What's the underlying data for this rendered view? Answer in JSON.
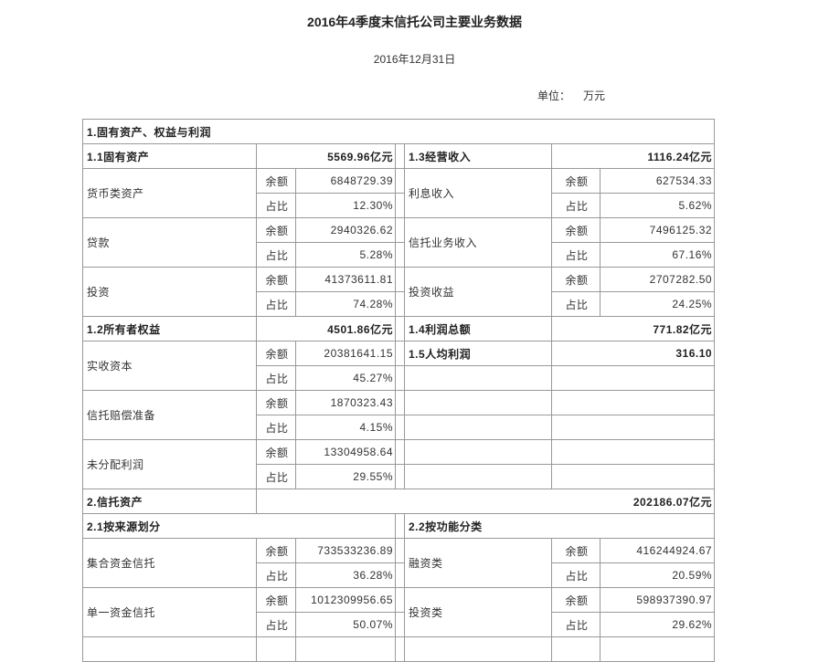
{
  "title": "2016年4季度末信托公司主要业务数据",
  "date": "2016年12月31日",
  "unit_label": "单位：",
  "unit": "万元",
  "labels": {
    "amount": "余额",
    "ratio": "占比"
  },
  "s1": {
    "title": "1.固有资产、权益与利润",
    "fixed_assets": {
      "label": "1.1固有资产",
      "total": "5569.96亿元",
      "items": [
        {
          "name": "货币类资产",
          "amount": "6848729.39",
          "ratio": "12.30%"
        },
        {
          "name": "贷款",
          "amount": "2940326.62",
          "ratio": "5.28%"
        },
        {
          "name": "投资",
          "amount": "41373611.81",
          "ratio": "74.28%"
        }
      ]
    },
    "revenue": {
      "label": "1.3经营收入",
      "total": "1116.24亿元",
      "items": [
        {
          "name": "利息收入",
          "amount": "627534.33",
          "ratio": "5.62%"
        },
        {
          "name": "信托业务收入",
          "amount": "7496125.32",
          "ratio": "67.16%"
        },
        {
          "name": "投资收益",
          "amount": "2707282.50",
          "ratio": "24.25%"
        }
      ]
    },
    "equity": {
      "label": "1.2所有者权益",
      "total": "4501.86亿元",
      "items": [
        {
          "name": "实收资本",
          "amount": "20381641.15",
          "ratio": "45.27%"
        },
        {
          "name": "信托赔偿准备",
          "amount": "1870323.43",
          "ratio": "4.15%"
        },
        {
          "name": "未分配利润",
          "amount": "13304958.64",
          "ratio": "29.55%"
        }
      ]
    },
    "profit_total": {
      "label": "1.4利润总额",
      "value": "771.82亿元"
    },
    "profit_per_capita": {
      "label": "1.5人均利润",
      "value": "316.10"
    }
  },
  "s2": {
    "title": "2.信托资产",
    "total": "202186.07亿元",
    "by_source": {
      "label": "2.1按来源划分",
      "items": [
        {
          "name": "集合资金信托",
          "amount": "733533236.89",
          "ratio": "36.28%"
        },
        {
          "name": "单一资金信托",
          "amount": "1012309956.65",
          "ratio": "50.07%"
        }
      ]
    },
    "by_function": {
      "label": "2.2按功能分类",
      "items": [
        {
          "name": "融资类",
          "amount": "416244924.67",
          "ratio": "20.59%"
        },
        {
          "name": "投资类",
          "amount": "598937390.97",
          "ratio": "29.62%"
        }
      ]
    }
  }
}
